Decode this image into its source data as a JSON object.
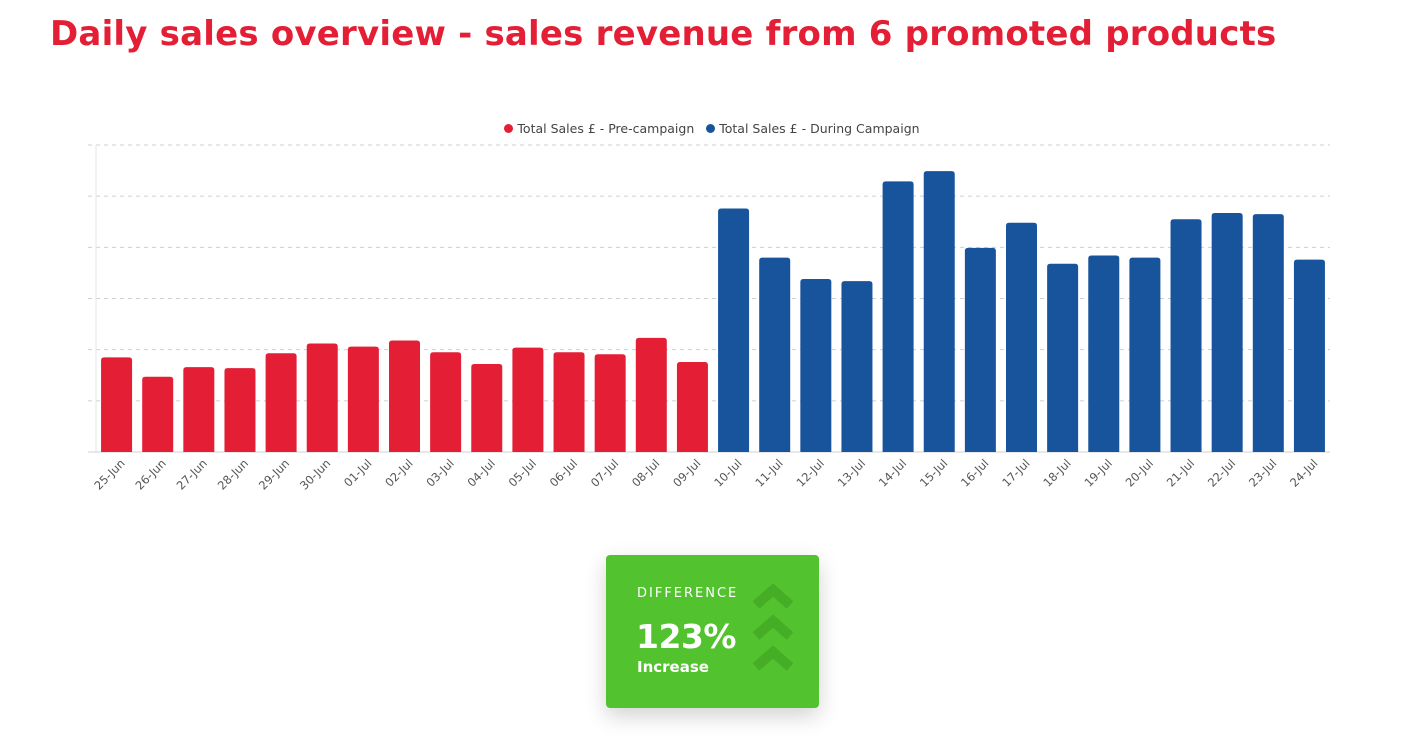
{
  "title": "Daily sales overview - sales revenue from 6 promoted products",
  "colors": {
    "title": "#e31e35",
    "pre": "#e31e35",
    "during": "#17549b",
    "card": "#52c22e",
    "card_icon": "#46ad26"
  },
  "chart_data": {
    "type": "bar",
    "categories": [
      "25-Jun",
      "26-Jun",
      "27-Jun",
      "28-Jun",
      "29-Jun",
      "30-Jun",
      "01-Jul",
      "02-Jul",
      "03-Jul",
      "04-Jul",
      "05-Jul",
      "06-Jul",
      "07-Jul",
      "08-Jul",
      "09-Jul",
      "10-Jul",
      "11-Jul",
      "12-Jul",
      "13-Jul",
      "14-Jul",
      "15-Jul",
      "16-Jul",
      "17-Jul",
      "18-Jul",
      "19-Jul",
      "20-Jul",
      "21-Jul",
      "22-Jul",
      "23-Jul",
      "24-Jul"
    ],
    "series": [
      {
        "name": "Total Sales £ - Pre-campaign",
        "color": "#e31e35",
        "values": [
          1.85,
          1.47,
          1.66,
          1.64,
          1.93,
          2.12,
          2.06,
          2.18,
          1.95,
          1.72,
          2.04,
          1.95,
          1.91,
          2.23,
          1.76,
          null,
          null,
          null,
          null,
          null,
          null,
          null,
          null,
          null,
          null,
          null,
          null,
          null,
          null,
          null
        ]
      },
      {
        "name": "Total Sales £ - During Campaign",
        "color": "#17549b",
        "values": [
          null,
          null,
          null,
          null,
          null,
          null,
          null,
          null,
          null,
          null,
          null,
          null,
          null,
          null,
          null,
          4.76,
          3.8,
          3.38,
          3.34,
          5.29,
          5.49,
          3.99,
          4.48,
          3.68,
          3.84,
          3.8,
          4.55,
          4.67,
          4.65,
          3.76
        ]
      }
    ],
    "ylim": [
      0,
      6
    ],
    "grid": true,
    "legend": "top-center",
    "xlabel": "",
    "ylabel": ""
  },
  "card": {
    "label": "DIFFERENCE",
    "value": "123%",
    "sublabel": "Increase",
    "icon": "chevron-up-icon"
  }
}
